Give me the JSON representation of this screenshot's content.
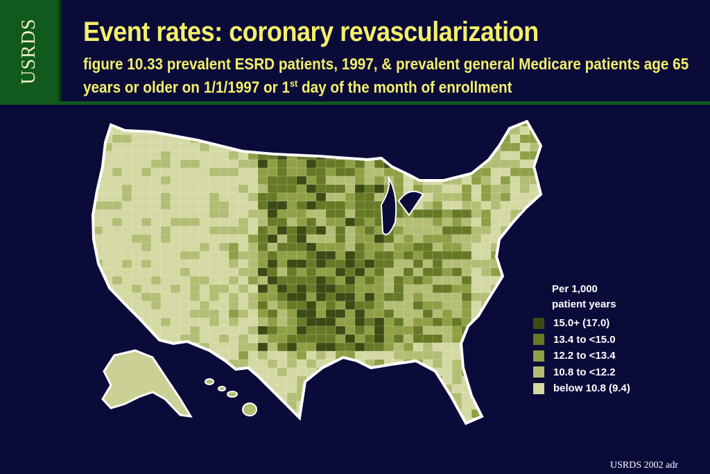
{
  "sidebar": {
    "label": "USRDS"
  },
  "header": {
    "title": "Event rates: coronary revascularization",
    "subtitle_main": "figure 10.33 prevalent ESRD patients, 1997, & prevalent general Medicare patients age 65 years or older on 1/1/1997 or 1",
    "subtitle_sup": "st",
    "subtitle_end": " day of the month of enrollment"
  },
  "legend": {
    "title_line1": "Per 1,000",
    "title_line2": "patient years",
    "items": [
      {
        "label": "15.0+ (17.0)",
        "color": "#3c4a14"
      },
      {
        "label": "13.4 to <15.0",
        "color": "#667a26"
      },
      {
        "label": "12.2 to <13.4",
        "color": "#8f9f45"
      },
      {
        "label": "10.8 to <12.2",
        "color": "#b3bd74"
      },
      {
        "label": "below 10.8 (9.4)",
        "color": "#d4d9a4"
      }
    ]
  },
  "footer": {
    "label": "USRDS 2002 adr"
  }
}
